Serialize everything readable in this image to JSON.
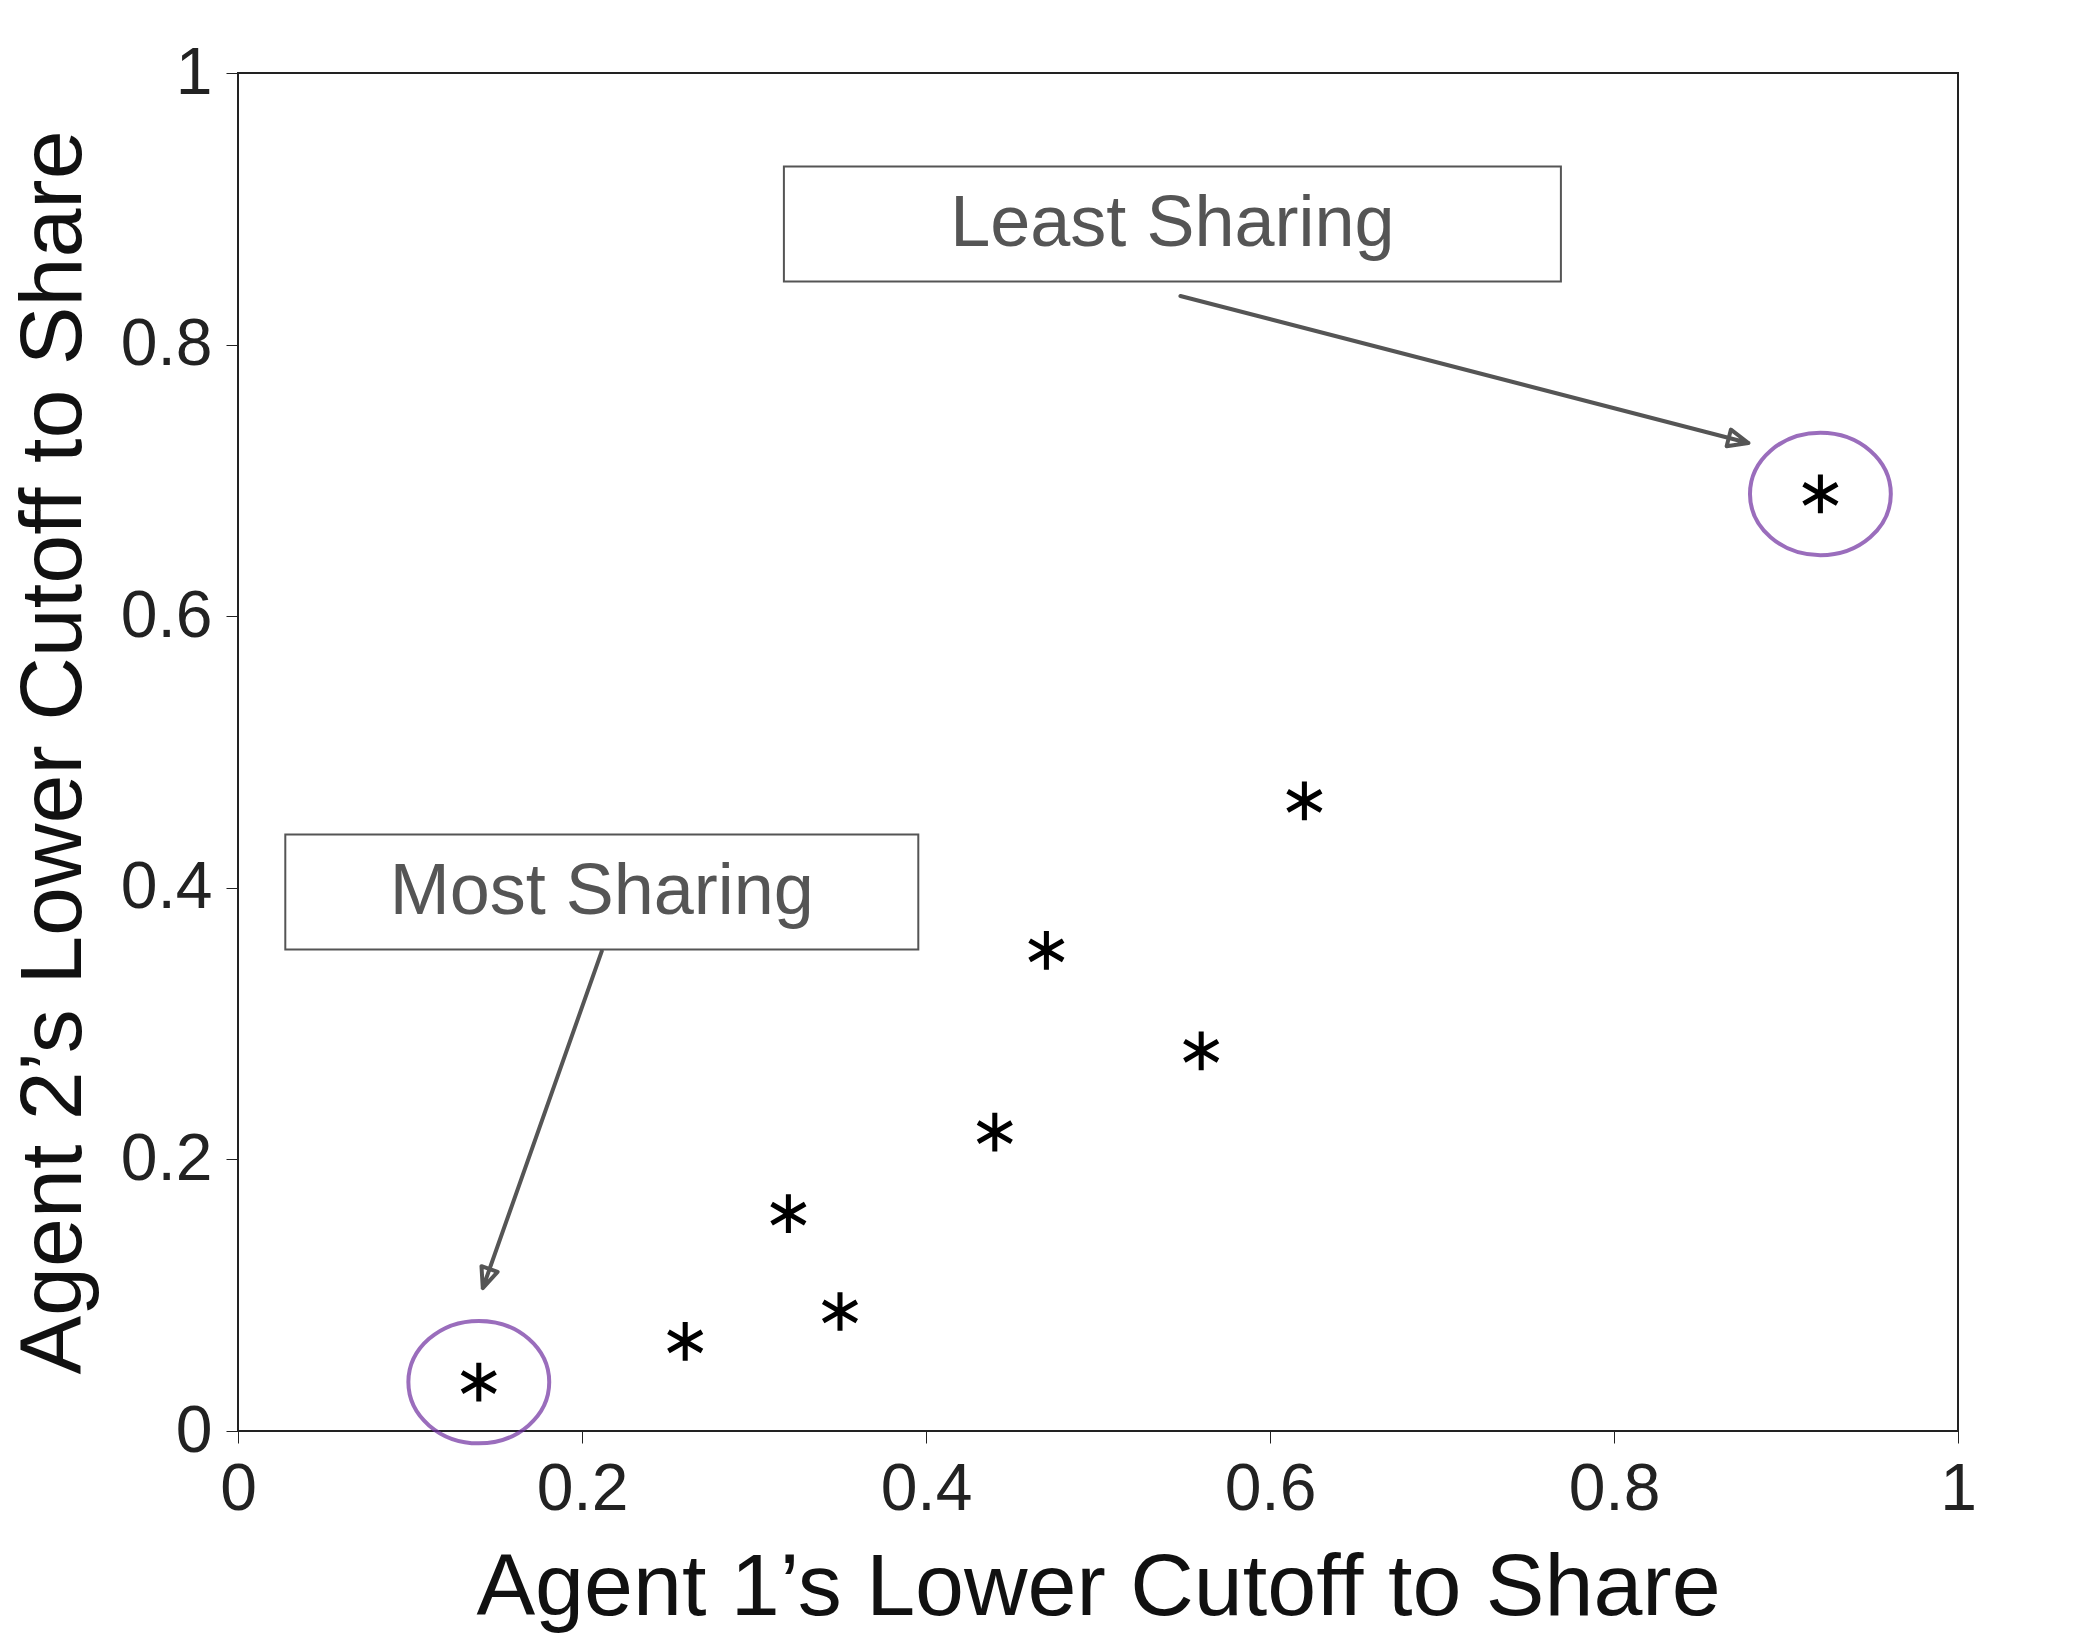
{
  "chart_data": {
    "type": "scatter",
    "xlabel": "Agent 1’s Lower Cutoff to Share",
    "ylabel": "Agent 2’s Lower Cutoff to Share",
    "x": [
      0.14,
      0.26,
      0.32,
      0.35,
      0.44,
      0.47,
      0.56,
      0.62,
      0.92
    ],
    "series": [
      {
        "color": "#000000",
        "values": [
          0.036,
          0.066,
          0.16,
          0.088,
          0.22,
          0.354,
          0.28,
          0.464,
          0.69
        ]
      }
    ],
    "xlim": [
      0,
      1
    ],
    "ylim": [
      0,
      1
    ],
    "xticks": [
      0,
      0.2,
      0.4,
      0.6,
      0.8,
      1
    ],
    "yticks": [
      0,
      0.2,
      0.4,
      0.6,
      0.8,
      1
    ],
    "marker": "star",
    "grid": false,
    "annotations": [
      "Least Sharing",
      "Most Sharing"
    ]
  }
}
